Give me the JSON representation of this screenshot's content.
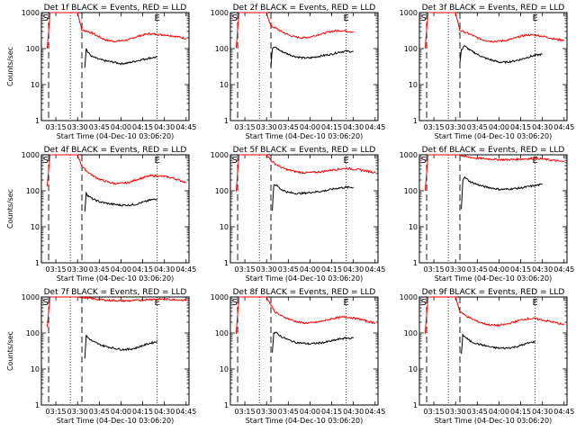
{
  "chart_data": {
    "type": "line",
    "ylabel": "Counts/sec",
    "yscale": "log",
    "ylim": [
      1,
      1000
    ],
    "ytick_labels": [
      "1",
      "10",
      "100",
      "1000"
    ],
    "xlim": [
      "03:05",
      "04:47"
    ],
    "xtick_labels": [
      "03:15",
      "03:30",
      "03:45",
      "04:00",
      "04:15",
      "04:30",
      "04:45"
    ],
    "grid": false,
    "markers": [
      {
        "label": "S",
        "time": "03:08"
      },
      {
        "label": "E",
        "time": "04:25"
      }
    ],
    "panels": [
      {
        "title": "Det 1f BLACK = Events, RED = LLD",
        "xlabel": "Start Time (04-Dec-10 03:06:20)",
        "series": [
          {
            "color": "#ff0000",
            "x": [
              "03:09",
              "03:11",
              "03:20",
              "03:30",
              "03:33",
              "03:36",
              "03:40",
              "03:45",
              "03:50",
              "03:55",
              "04:00",
              "04:05",
              "04:10",
              "04:15",
              "04:20",
              "04:25",
              "04:30",
              "04:35",
              "04:40",
              "04:45"
            ],
            "values": [
              100,
              1000,
              1000,
              1000,
              320,
              310,
              270,
              210,
              170,
              160,
              165,
              175,
              210,
              240,
              260,
              250,
              240,
              230,
              210,
              190
            ]
          },
          {
            "color": "#000000",
            "x": [
              "03:35",
              "03:36",
              "03:37",
              "03:40",
              "03:45",
              "03:50",
              "03:55",
              "04:00",
              "04:05",
              "04:10",
              "04:15",
              "04:20",
              "04:25"
            ],
            "values": [
              30,
              100,
              80,
              60,
              50,
              45,
              42,
              38,
              40,
              45,
              50,
              55,
              58
            ]
          }
        ]
      },
      {
        "title": "Det 2f BLACK = Events, RED = LLD",
        "xlabel": "Start Time (04-Dec-10 03:06:20)",
        "series": [
          {
            "color": "#ff0000",
            "x": [
              "03:09",
              "03:11",
              "03:20",
              "03:30",
              "03:33",
              "03:36",
              "03:40",
              "03:45",
              "03:50",
              "03:55",
              "04:00",
              "04:05",
              "04:10",
              "04:15",
              "04:20",
              "04:25",
              "04:30"
            ],
            "values": [
              100,
              1000,
              1000,
              1000,
              420,
              380,
              300,
              240,
              210,
              200,
              210,
              240,
              270,
              300,
              320,
              310,
              290
            ]
          },
          {
            "color": "#000000",
            "x": [
              "03:33",
              "03:34",
              "03:36",
              "03:40",
              "03:45",
              "03:50",
              "03:55",
              "04:00",
              "04:05",
              "04:10",
              "04:15",
              "04:20",
              "04:25",
              "04:30"
            ],
            "values": [
              30,
              100,
              110,
              85,
              70,
              60,
              55,
              55,
              60,
              65,
              70,
              80,
              85,
              82
            ]
          }
        ]
      },
      {
        "title": "Det 3f BLACK = Events, RED = LLD",
        "xlabel": "Start Time (04-Dec-10 03:06:20)",
        "series": [
          {
            "color": "#ff0000",
            "x": [
              "03:09",
              "03:11",
              "03:20",
              "03:30",
              "03:33",
              "03:36",
              "03:40",
              "03:45",
              "03:50",
              "03:55",
              "04:00",
              "04:05",
              "04:10",
              "04:15",
              "04:20",
              "04:25",
              "04:30",
              "04:35",
              "04:40",
              "04:45"
            ],
            "values": [
              100,
              1000,
              1000,
              1000,
              320,
              290,
              250,
              200,
              170,
              160,
              160,
              170,
              190,
              220,
              240,
              240,
              220,
              200,
              180,
              170
            ]
          },
          {
            "color": "#000000",
            "x": [
              "03:33",
              "03:34",
              "03:36",
              "03:40",
              "03:45",
              "03:50",
              "03:55",
              "04:00",
              "04:05",
              "04:10",
              "04:15",
              "04:20",
              "04:25",
              "04:30"
            ],
            "values": [
              40,
              90,
              120,
              90,
              70,
              55,
              48,
              42,
              42,
              45,
              50,
              58,
              65,
              70
            ]
          }
        ]
      },
      {
        "title": "Det 4f BLACK = Events, RED = LLD",
        "xlabel": "Start Time (04-Dec-10 03:06:20)",
        "series": [
          {
            "color": "#ff0000",
            "x": [
              "03:09",
              "03:11",
              "03:20",
              "03:30",
              "03:33",
              "03:36",
              "03:40",
              "03:45",
              "03:50",
              "03:55",
              "04:00",
              "04:05",
              "04:10",
              "04:15",
              "04:20",
              "04:25",
              "04:30",
              "04:35",
              "04:40",
              "04:45"
            ],
            "values": [
              130,
              1000,
              1000,
              1000,
              480,
              360,
              270,
              210,
              180,
              160,
              160,
              170,
              200,
              230,
              260,
              260,
              250,
              230,
              200,
              170
            ]
          },
          {
            "color": "#000000",
            "x": [
              "03:35",
              "03:36",
              "03:37",
              "03:40",
              "03:45",
              "03:50",
              "03:55",
              "04:00",
              "04:05",
              "04:10",
              "04:15",
              "04:20",
              "04:25"
            ],
            "values": [
              25,
              90,
              75,
              60,
              50,
              45,
              42,
              40,
              40,
              42,
              48,
              55,
              60
            ]
          }
        ]
      },
      {
        "title": "Det 5f BLACK = Events, RED = LLD",
        "xlabel": "Start Time (04-Dec-10 03:06:20)",
        "series": [
          {
            "color": "#ff0000",
            "x": [
              "03:09",
              "03:11",
              "03:20",
              "03:30",
              "03:33",
              "03:36",
              "03:40",
              "03:45",
              "03:50",
              "03:55",
              "04:00",
              "04:05",
              "04:10",
              "04:15",
              "04:20",
              "04:25",
              "04:30",
              "04:35",
              "04:40",
              "04:45"
            ],
            "values": [
              100,
              1000,
              1000,
              1000,
              700,
              560,
              450,
              380,
              340,
              320,
              320,
              330,
              350,
              380,
              400,
              420,
              400,
              380,
              350,
              320
            ]
          },
          {
            "color": "#000000",
            "x": [
              "03:34",
              "03:35",
              "03:37",
              "03:40",
              "03:45",
              "03:50",
              "03:55",
              "04:00",
              "04:05",
              "04:10",
              "04:15",
              "04:20",
              "04:25",
              "04:30"
            ],
            "values": [
              30,
              150,
              140,
              110,
              90,
              85,
              85,
              90,
              95,
              100,
              110,
              120,
              125,
              125
            ]
          }
        ]
      },
      {
        "title": "Det 6f BLACK = Events, RED = LLD",
        "xlabel": "Start Time (04-Dec-10 03:06:20)",
        "series": [
          {
            "color": "#ff0000",
            "x": [
              "03:09",
              "03:11",
              "03:20",
              "03:30",
              "03:33",
              "03:36",
              "03:40",
              "03:45",
              "03:50",
              "03:55",
              "04:00",
              "04:05",
              "04:10",
              "04:15",
              "04:20",
              "04:25",
              "04:30",
              "04:35",
              "04:40",
              "04:45"
            ],
            "values": [
              100,
              1000,
              1000,
              1000,
              1000,
              900,
              850,
              800,
              780,
              760,
              740,
              730,
              740,
              760,
              780,
              800,
              760,
              720,
              680,
              640
            ]
          },
          {
            "color": "#000000",
            "x": [
              "03:34",
              "03:35",
              "03:36",
              "03:40",
              "03:45",
              "03:50",
              "03:55",
              "04:00",
              "04:05",
              "04:10",
              "04:15",
              "04:20",
              "04:25",
              "04:30"
            ],
            "values": [
              30,
              200,
              240,
              180,
              150,
              130,
              120,
              110,
              110,
              115,
              120,
              130,
              140,
              150
            ]
          }
        ]
      },
      {
        "title": "Det 7f BLACK = Events, RED = LLD",
        "xlabel": "Start Time (04-Dec-10 03:06:20)",
        "series": [
          {
            "color": "#ff0000",
            "x": [
              "03:09",
              "03:11",
              "03:20",
              "03:30",
              "03:35",
              "03:40",
              "03:45",
              "03:50",
              "03:55",
              "04:00",
              "04:05",
              "04:10",
              "04:15",
              "04:20",
              "04:25",
              "04:30",
              "04:35",
              "04:40",
              "04:45"
            ],
            "values": [
              150,
              1000,
              1000,
              1000,
              950,
              900,
              850,
              820,
              800,
              780,
              780,
              800,
              830,
              860,
              880,
              870,
              860,
              840,
              820
            ]
          },
          {
            "color": "#000000",
            "x": [
              "03:35",
              "03:36",
              "03:37",
              "03:40",
              "03:45",
              "03:50",
              "03:55",
              "04:00",
              "04:05",
              "04:10",
              "04:15",
              "04:20",
              "04:25"
            ],
            "values": [
              20,
              85,
              75,
              60,
              48,
              42,
              38,
              35,
              35,
              38,
              45,
              52,
              58
            ]
          }
        ]
      },
      {
        "title": "Det 8f BLACK = Events, RED = LLD",
        "xlabel": "Start Time (04-Dec-10 03:06:20)",
        "series": [
          {
            "color": "#ff0000",
            "x": [
              "03:09",
              "03:11",
              "03:20",
              "03:30",
              "03:33",
              "03:36",
              "03:40",
              "03:45",
              "03:50",
              "03:55",
              "04:00",
              "04:05",
              "04:10",
              "04:15",
              "04:20",
              "04:25",
              "04:30",
              "04:35",
              "04:40",
              "04:45"
            ],
            "values": [
              100,
              1000,
              1000,
              1000,
              600,
              380,
              300,
              250,
              210,
              190,
              190,
              200,
              220,
              250,
              270,
              280,
              260,
              240,
              210,
              190
            ]
          },
          {
            "color": "#000000",
            "x": [
              "03:34",
              "03:35",
              "03:37",
              "03:40",
              "03:45",
              "03:50",
              "03:55",
              "04:00",
              "04:05",
              "04:10",
              "04:15",
              "04:20",
              "04:25",
              "04:30"
            ],
            "values": [
              30,
              100,
              100,
              80,
              65,
              55,
              52,
              50,
              52,
              55,
              60,
              68,
              72,
              72
            ]
          }
        ]
      },
      {
        "title": "Det 9f BLACK = Events, RED = LLD",
        "xlabel": "Start Time (04-Dec-10 03:06:20)",
        "series": [
          {
            "color": "#ff0000",
            "x": [
              "03:09",
              "03:11",
              "03:20",
              "03:30",
              "03:33",
              "03:36",
              "03:40",
              "03:45",
              "03:50",
              "03:55",
              "04:00",
              "04:05",
              "04:10",
              "04:15",
              "04:20",
              "04:25",
              "04:30",
              "04:35",
              "04:40",
              "04:45"
            ],
            "values": [
              100,
              1000,
              1000,
              1000,
              400,
              320,
              260,
              210,
              180,
              165,
              165,
              175,
              200,
              230,
              250,
              250,
              230,
              210,
              190,
              170
            ]
          },
          {
            "color": "#000000",
            "x": [
              "03:34",
              "03:35",
              "03:37",
              "03:40",
              "03:45",
              "03:50",
              "03:55",
              "04:00",
              "04:05",
              "04:10",
              "04:15",
              "04:20",
              "04:25"
            ],
            "values": [
              25,
              90,
              75,
              60,
              50,
              45,
              40,
              38,
              38,
              40,
              45,
              52,
              58
            ]
          }
        ]
      }
    ]
  }
}
